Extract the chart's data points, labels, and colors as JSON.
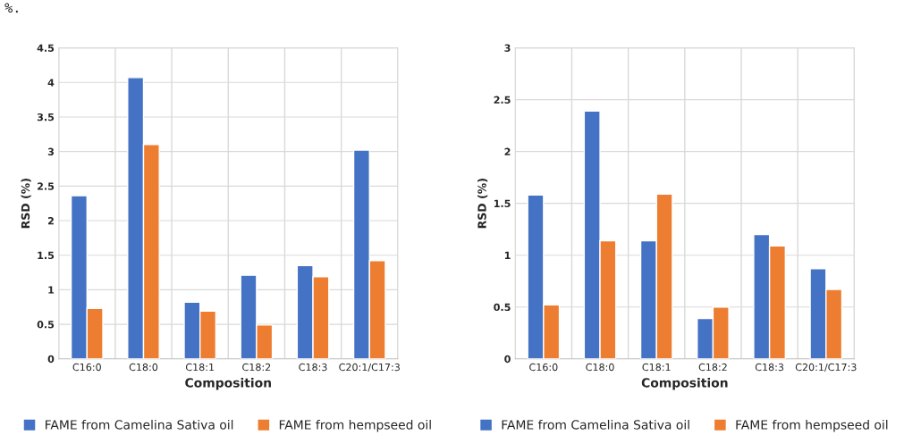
{
  "chart_data": [
    {
      "type": "bar",
      "xlabel": "Composition",
      "ylabel": "RSD (%)",
      "categories": [
        "C16:0",
        "C18:0",
        "C18:1",
        "C18:2",
        "C18:3",
        "C20:1/C17:3"
      ],
      "series": [
        {
          "name": "FAME from Camelina Sativa oil",
          "color": "#4472c4",
          "values": [
            2.36,
            4.07,
            0.82,
            1.21,
            1.35,
            3.02
          ]
        },
        {
          "name": "FAME from hempseed oil",
          "color": "#ed7d31",
          "values": [
            0.73,
            3.1,
            0.69,
            0.49,
            1.19,
            1.42
          ]
        }
      ],
      "ylim": [
        0,
        4.5
      ],
      "yticks": [
        0,
        0.5,
        1,
        1.5,
        2,
        2.5,
        3,
        3.5,
        4,
        4.5
      ],
      "grid": true,
      "legend": "bottom",
      "annotations": [
        "%."
      ]
    },
    {
      "type": "bar",
      "xlabel": "Composition",
      "ylabel": "RSD (%)",
      "categories": [
        "C16:0",
        "C18:0",
        "C18:1",
        "C18:2",
        "C18:3",
        "C20:1/C17:3"
      ],
      "series": [
        {
          "name": "FAME from Camelina Sativa oil",
          "color": "#4472c4",
          "values": [
            1.58,
            2.39,
            1.14,
            0.39,
            1.2,
            0.87
          ]
        },
        {
          "name": "FAME from hempseed oil",
          "color": "#ed7d31",
          "values": [
            0.52,
            1.14,
            1.59,
            0.5,
            1.09,
            0.67
          ]
        }
      ],
      "ylim": [
        0,
        3
      ],
      "yticks": [
        0,
        0.5,
        1,
        1.5,
        2,
        2.5,
        3
      ],
      "grid": true,
      "legend": "bottom"
    }
  ]
}
